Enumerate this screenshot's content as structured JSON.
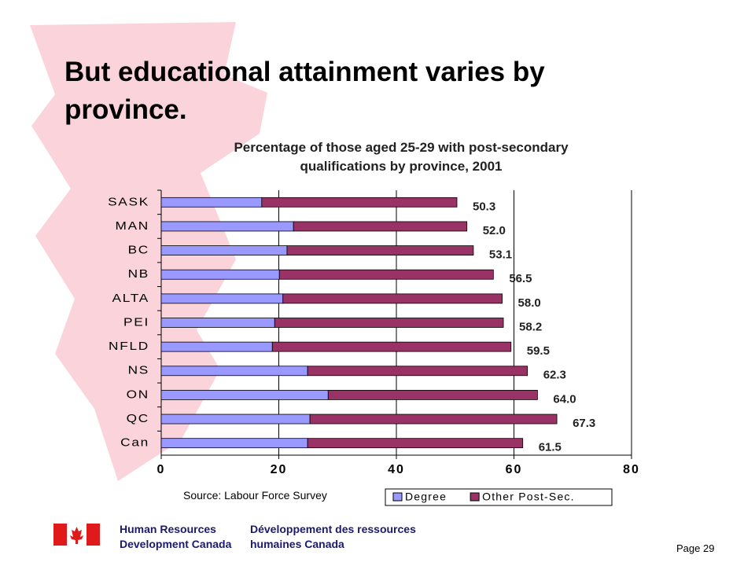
{
  "slide": {
    "title": "But educational attainment varies by province.",
    "source": "Source: Labour Force Survey",
    "page": "Page 29",
    "org_en": "Human Resources Development Canada",
    "org_fr": "Développement des ressources humaines Canada"
  },
  "chart_data": {
    "type": "stacked-bar-horizontal",
    "title": "Percentage of those aged 25-29 with post-secondary qualifications by province, 2001",
    "categories": [
      "SASK",
      "MAN",
      "BC",
      "NB",
      "ALTA",
      "PEI",
      "NFLD",
      "NS",
      "ON",
      "QC",
      "Can"
    ],
    "series": [
      {
        "name": "Degree",
        "color": "#9999ff",
        "values": [
          17.1,
          22.5,
          21.4,
          20.1,
          20.7,
          19.3,
          18.9,
          24.9,
          28.4,
          25.3,
          24.9
        ]
      },
      {
        "name": "Other Post-Sec.",
        "color": "#993366",
        "values": [
          33.2,
          29.5,
          31.7,
          36.4,
          37.3,
          38.9,
          40.6,
          37.4,
          35.6,
          42.0,
          36.6
        ]
      }
    ],
    "totals": [
      50.3,
      52.0,
      53.1,
      56.5,
      58.0,
      58.2,
      59.5,
      62.3,
      64.0,
      67.3,
      61.5
    ],
    "total_labels": [
      "50.3",
      "52.0",
      "53.1",
      "56.5",
      "58.0",
      "58.2",
      "59.5",
      "62.3",
      "64.0",
      "67.3",
      "61.5"
    ],
    "xlim": [
      0,
      80
    ],
    "xticks": [
      0,
      20,
      40,
      60,
      80
    ],
    "grid": true,
    "legend": "bottom"
  }
}
